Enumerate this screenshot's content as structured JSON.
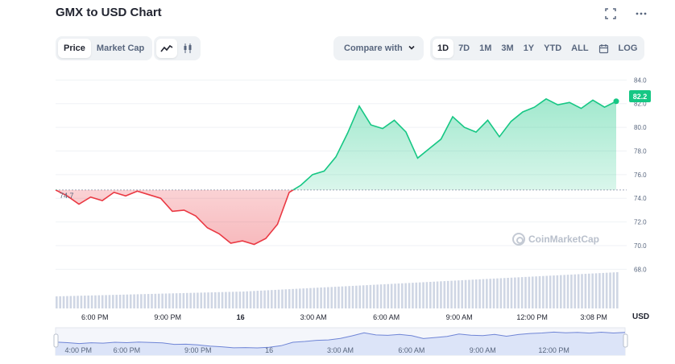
{
  "header": {
    "title": "GMX to USD Chart",
    "fullscreen_icon": "fullscreen-icon",
    "more_icon": "more-horizontal-icon"
  },
  "toolbar": {
    "type_tabs": [
      {
        "label": "Price",
        "active": true
      },
      {
        "label": "Market Cap",
        "active": false
      }
    ],
    "chart_style_icons": [
      "line-chart-icon",
      "candlestick-icon"
    ],
    "compare_label": "Compare with",
    "compare_icon": "chevron-down-icon",
    "range_tabs": [
      {
        "label": "1D",
        "active": true
      },
      {
        "label": "7D",
        "active": false
      },
      {
        "label": "1M",
        "active": false
      },
      {
        "label": "3M",
        "active": false
      },
      {
        "label": "1Y",
        "active": false
      },
      {
        "label": "YTD",
        "active": false
      },
      {
        "label": "ALL",
        "active": false
      }
    ],
    "calendar_icon": "calendar-icon",
    "log_label": "LOG"
  },
  "watermark": "CoinMarketCap",
  "colors": {
    "up": "#16c784",
    "down": "#ea3943",
    "volume": "#cfd6e4",
    "navigator_fill": "#dce4f8",
    "navigator_line": "#6f85d6"
  },
  "chart_data": {
    "type": "line",
    "title": "GMX to USD Chart",
    "currency_label": "USD",
    "baseline_label": "74.7",
    "baseline": 74.7,
    "last_price_label": "82.2",
    "ylim": [
      67.0,
      84.5
    ],
    "y_ticks": [
      "84.0",
      "82.0",
      "80.0",
      "78.0",
      "76.0",
      "74.0",
      "72.0",
      "70.0",
      "68.0"
    ],
    "x_ticks": [
      "6:00 PM",
      "9:00 PM",
      "16",
      "3:00 AM",
      "6:00 AM",
      "9:00 AM",
      "12:00 PM",
      "3:08 PM"
    ],
    "navigator_ticks": [
      "4:00 PM",
      "6:00 PM",
      "9:00 PM",
      "16",
      "3:00 AM",
      "6:00 AM",
      "9:00 AM",
      "12:00 PM"
    ],
    "grid": true,
    "price": {
      "hours_since_start": [
        0,
        0.5,
        1.0,
        1.5,
        2.0,
        2.5,
        3.0,
        3.5,
        4.0,
        4.5,
        5.0,
        5.5,
        6.0,
        6.5,
        7.0,
        7.5,
        8.0,
        8.5,
        9.0,
        9.5,
        10.0,
        10.5,
        11.0,
        11.5,
        12.0,
        12.5,
        13.0,
        13.5,
        14.0,
        14.5,
        15.0,
        15.5,
        16.0,
        16.5,
        17.0,
        17.5,
        18.0,
        18.5,
        19.0,
        19.5,
        20.0,
        20.5,
        21.0,
        21.5,
        22.0,
        22.5,
        23.0,
        23.5,
        24.0
      ],
      "values": [
        74.7,
        74.2,
        73.5,
        74.1,
        73.8,
        74.5,
        74.2,
        74.6,
        74.3,
        74.0,
        72.9,
        73.0,
        72.5,
        71.5,
        71.0,
        70.2,
        70.4,
        70.1,
        70.6,
        71.8,
        74.5,
        75.1,
        76.0,
        76.3,
        77.5,
        79.5,
        81.8,
        80.2,
        79.9,
        80.6,
        79.6,
        77.4,
        78.2,
        79.0,
        80.9,
        80.0,
        79.6,
        80.6,
        79.2,
        80.5,
        81.3,
        81.7,
        82.4,
        81.9,
        82.1,
        81.6,
        82.3,
        81.7,
        82.2
      ]
    },
    "volume": {
      "values": [
        1.0,
        1.05,
        1.1,
        1.15,
        1.2,
        1.25,
        1.3,
        1.35,
        1.4,
        1.5,
        1.6,
        1.7,
        1.8,
        1.9,
        2.0,
        2.1,
        2.2,
        2.3,
        2.4,
        2.5,
        2.6,
        2.7,
        2.8,
        2.9,
        3.0
      ]
    }
  }
}
